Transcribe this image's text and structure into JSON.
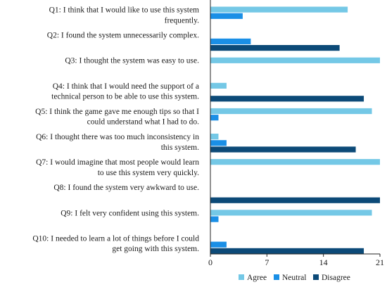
{
  "chart_data": {
    "type": "bar",
    "orientation": "horizontal",
    "categories": [
      [
        "Q1: I think that I would like to use this system",
        "frequently."
      ],
      [
        "Q2: I found the system unnecessarily complex."
      ],
      [
        "Q3: I thought the system was easy to use."
      ],
      [
        "Q4: I think that I would need the support of a",
        "technical person to be able to use this system."
      ],
      [
        "Q5: I think the game gave me enough tips so that I",
        "could understand what I had to do."
      ],
      [
        "Q6: I thought there was too much inconsistency in",
        "this system."
      ],
      [
        "Q7: I would imagine that most people would learn",
        "to use this system very quickly."
      ],
      [
        "Q8: I found the system very awkward to use."
      ],
      [
        "Q9: I felt very confident using this system."
      ],
      [
        "Q10: I needed to learn a lot of things before I could",
        "get going with this system."
      ]
    ],
    "series": [
      {
        "name": "Agree",
        "color": "#74c8e6",
        "values": [
          17,
          0,
          21,
          2,
          20,
          1,
          21,
          0,
          20,
          0
        ]
      },
      {
        "name": "Neutral",
        "color": "#1a8fe6",
        "values": [
          4,
          5,
          0,
          0,
          1,
          2,
          0,
          0,
          1,
          2
        ]
      },
      {
        "name": "Disagree",
        "color": "#0c4a78",
        "values": [
          0,
          16,
          0,
          19,
          0,
          18,
          0,
          21,
          0,
          19
        ]
      }
    ],
    "xlim": [
      0,
      21
    ],
    "xticks": [
      0,
      7,
      14,
      21
    ],
    "legend_position": "bottom",
    "grid": false
  }
}
